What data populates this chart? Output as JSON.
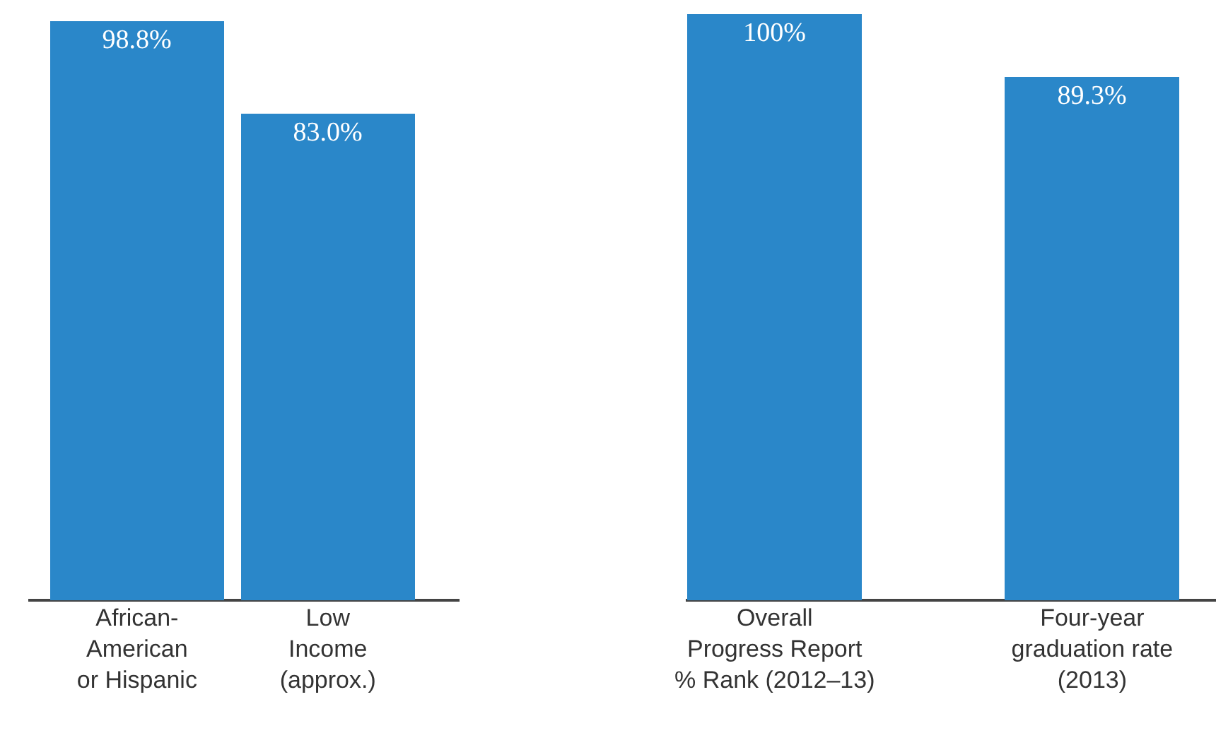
{
  "chart_data": [
    {
      "type": "bar",
      "categories": [
        "African-\nAmerican\nor Hispanic",
        "Low\nIncome\n(approx.)"
      ],
      "values": [
        98.8,
        83.0
      ],
      "value_labels": [
        "98.8%",
        "83.0%"
      ],
      "color": "#2a87c9"
    },
    {
      "type": "bar",
      "categories": [
        "Overall\nProgress Report\n% Rank (2012–13)",
        "Four-year\ngraduation rate\n(2013)"
      ],
      "values": [
        100,
        89.3
      ],
      "value_labels": [
        "100%",
        "89.3%"
      ],
      "color": "#2a87c9"
    }
  ]
}
